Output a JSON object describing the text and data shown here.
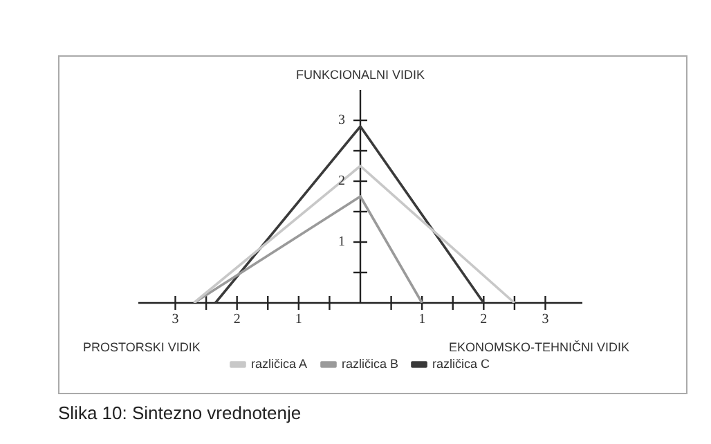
{
  "chart_data": {
    "type": "line",
    "ylabel": "FUNKCIONALNI VIDIK",
    "series": [
      {
        "name": "različica A",
        "color": "#c8c8c8",
        "x": [
          -2.7,
          0,
          2.5
        ],
        "values": [
          0,
          2.25,
          0
        ]
      },
      {
        "name": "različica B",
        "color": "#9a9a9a",
        "x": [
          -2.7,
          0,
          1
        ],
        "values": [
          0,
          1.75,
          0
        ]
      },
      {
        "name": "različica C",
        "color": "#3a3a3a",
        "x": [
          -2.35,
          0,
          2
        ],
        "values": [
          0,
          2.9,
          0
        ]
      }
    ],
    "xlim": [
      -3.6,
      3.6
    ],
    "xticks": [
      {
        "value": -3,
        "label": "3"
      },
      {
        "value": -2.5,
        "label": null
      },
      {
        "value": -2,
        "label": "2"
      },
      {
        "value": -1.5,
        "label": null
      },
      {
        "value": -1,
        "label": "1"
      },
      {
        "value": -0.5,
        "label": null
      },
      {
        "value": 0.5,
        "label": null
      },
      1,
      {
        "value": 1.5,
        "label": null
      },
      2,
      {
        "value": 2.5,
        "label": null
      },
      3
    ],
    "ylim": [
      0,
      3.5
    ],
    "yticks": [
      {
        "value": 0.5,
        "label": null
      },
      1,
      {
        "value": 1.5,
        "label": null
      },
      2,
      {
        "value": 2.5,
        "label": null
      },
      3
    ],
    "legend": "bottom",
    "marker": "none",
    "annotations": [
      "PROSTORSKI VIDIK",
      "EKONOMSKO-TEHNIČNI VIDIK",
      "Slika 10: Sintezno vrednotenje"
    ]
  }
}
